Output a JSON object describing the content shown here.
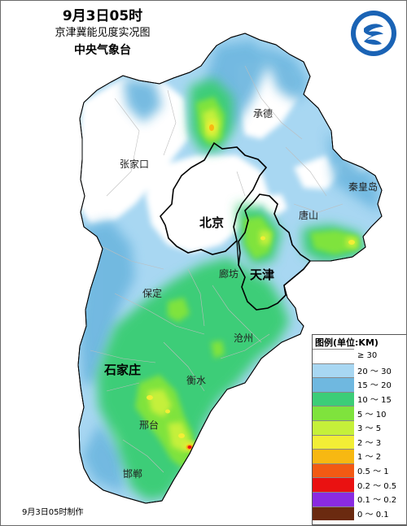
{
  "title": {
    "time": "9月3日05时",
    "subtitle": "京津冀能见度实况图",
    "agency": "中央气象台"
  },
  "cities": [
    {
      "name": "承德",
      "major": false
    },
    {
      "name": "张家口",
      "major": false
    },
    {
      "name": "秦皇岛",
      "major": false
    },
    {
      "name": "北京",
      "major": true
    },
    {
      "name": "唐山",
      "major": false
    },
    {
      "name": "廊坊",
      "major": false
    },
    {
      "name": "天津",
      "major": true
    },
    {
      "name": "保定",
      "major": false
    },
    {
      "name": "沧州",
      "major": false
    },
    {
      "name": "石家庄",
      "major": true
    },
    {
      "name": "衡水",
      "major": false
    },
    {
      "name": "邢台",
      "major": false
    },
    {
      "name": "邯郸",
      "major": false
    }
  ],
  "legend": {
    "title": "图例(单位:KM)",
    "items": [
      {
        "label": "≥ 30",
        "color": "#ffffff"
      },
      {
        "label": "20 ～ 30",
        "color": "#a8d7f2"
      },
      {
        "label": "15 ～ 20",
        "color": "#6fb8e0"
      },
      {
        "label": "10 ～ 15",
        "color": "#3ccd78"
      },
      {
        "label": "5 ～ 10",
        "color": "#7fe33d"
      },
      {
        "label": "3 ～ 5",
        "color": "#c5f03a"
      },
      {
        "label": "2 ～ 3",
        "color": "#f2ee36"
      },
      {
        "label": "1 ～ 2",
        "color": "#f7b812"
      },
      {
        "label": "0.5 ～ 1",
        "color": "#f25a13"
      },
      {
        "label": "0.2 ～ 0.5",
        "color": "#ea1111"
      },
      {
        "label": "0.1 ～ 0.2",
        "color": "#8a2be2"
      },
      {
        "label": "0 ～ 0.1",
        "color": "#6b2a10"
      }
    ]
  },
  "footer": "9月3日05时制作",
  "colors": {
    "boundary": "#000000",
    "county_line": "#bdbdbd"
  }
}
